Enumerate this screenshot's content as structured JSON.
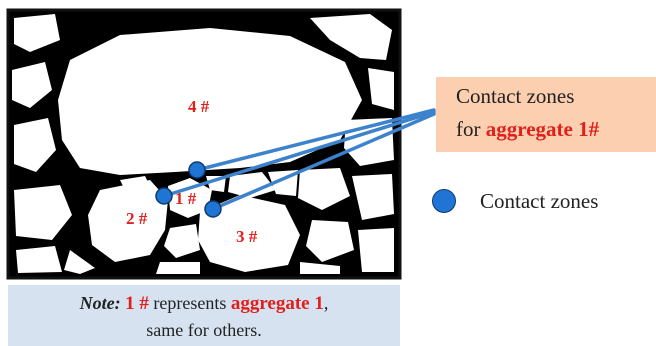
{
  "aggregates": [
    {
      "label": "4 #"
    },
    {
      "label": "1 #"
    },
    {
      "label": "2 #"
    },
    {
      "label": "3 #"
    }
  ],
  "callout": {
    "line1": "Contact zones",
    "line2_prefix": "for ",
    "line2_emph": "aggregate 1#"
  },
  "legend": {
    "label": "Contact zones",
    "marker_color": "#1f74d4"
  },
  "note": {
    "lead": "Note:",
    "ref": "1 #",
    "mid": " represents ",
    "emph": "aggregate 1",
    "tail1": ",",
    "line2": "same for others."
  },
  "colors": {
    "accent_red": "#e0201b",
    "callout_bg": "#fbcfb0",
    "note_bg": "#d6e2f0",
    "leader_line": "#3c82cc"
  }
}
